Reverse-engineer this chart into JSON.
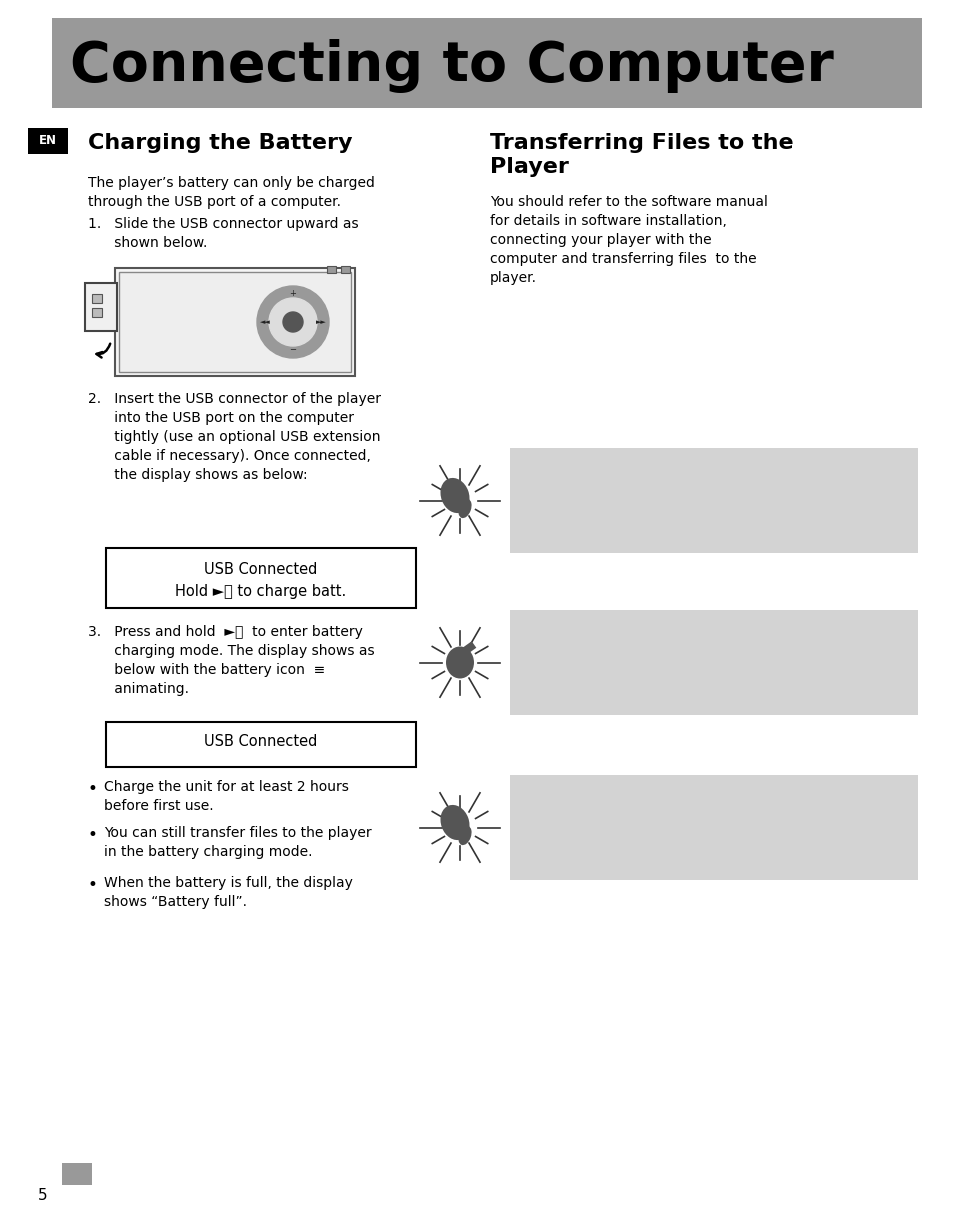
{
  "bg_color": "#ffffff",
  "header_bg": "#999999",
  "header_text": "Connecting to Computer",
  "header_text_color": "#000000",
  "header_font_size": 40,
  "en_badge_bg": "#000000",
  "en_badge_text": "EN",
  "en_badge_text_color": "#ffffff",
  "left_col_title": "Charging the Battery",
  "right_col_title_line1": "Transferring Files to the",
  "right_col_title_line2": "Player",
  "col_title_size": 16,
  "body_font_size": 10,
  "body_text_color": "#000000",
  "left_intro": "The player’s battery can only be charged\nthrough the USB port of a computer.",
  "step1": "1.   Slide the USB connector upward as\n      shown below.",
  "step2_text": "2.   Insert the USB connector of the player\n      into the USB port on the computer\n      tightly (use an optional USB extension\n      cable if necessary). Once connected,\n      the display shows as below:",
  "step3_text": "3.   Press and hold  ►⏸  to enter battery\n      charging mode. The display shows as\n      below with the battery icon  ≡\n      animating.",
  "box1_line1": "USB Connected",
  "box1_line2": "Hold ►⏸ to charge batt.",
  "box2_line1": "USB Connected",
  "bullet1": "Charge the unit for at least 2 hours\nbefore first use.",
  "bullet2": "You can still transfer files to the player\nin the battery charging mode.",
  "bullet3": "When the battery is full, the display\nshows “Battery full”.",
  "right_col_text": "You should refer to the software manual\nfor details in software installation,\nconnecting your player with the\ncomputer and transferring files  to the\nplayer.",
  "page_num": "5",
  "gray_box_color": "#d3d3d3"
}
